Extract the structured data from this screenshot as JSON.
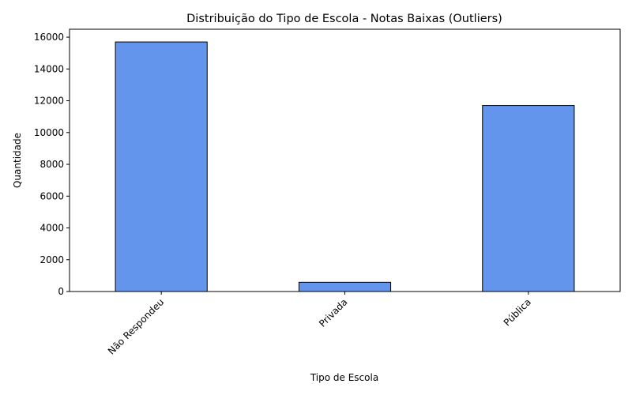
{
  "chart_data": {
    "type": "bar",
    "title": "Distribuição do Tipo de Escola - Notas Baixas (Outliers)",
    "xlabel": "Tipo de Escola",
    "ylabel": "Quantidade",
    "categories": [
      "Não Respondeu",
      "Privada",
      "Pública"
    ],
    "values": [
      15700,
      580,
      11700
    ],
    "ylim": [
      0,
      16500
    ],
    "yticks": [
      0,
      2000,
      4000,
      6000,
      8000,
      10000,
      12000,
      14000,
      16000
    ],
    "bar_color": "#6495ED",
    "edge_color": "#000000",
    "grid": false,
    "legend": "none",
    "xtick_rotation": 45
  }
}
